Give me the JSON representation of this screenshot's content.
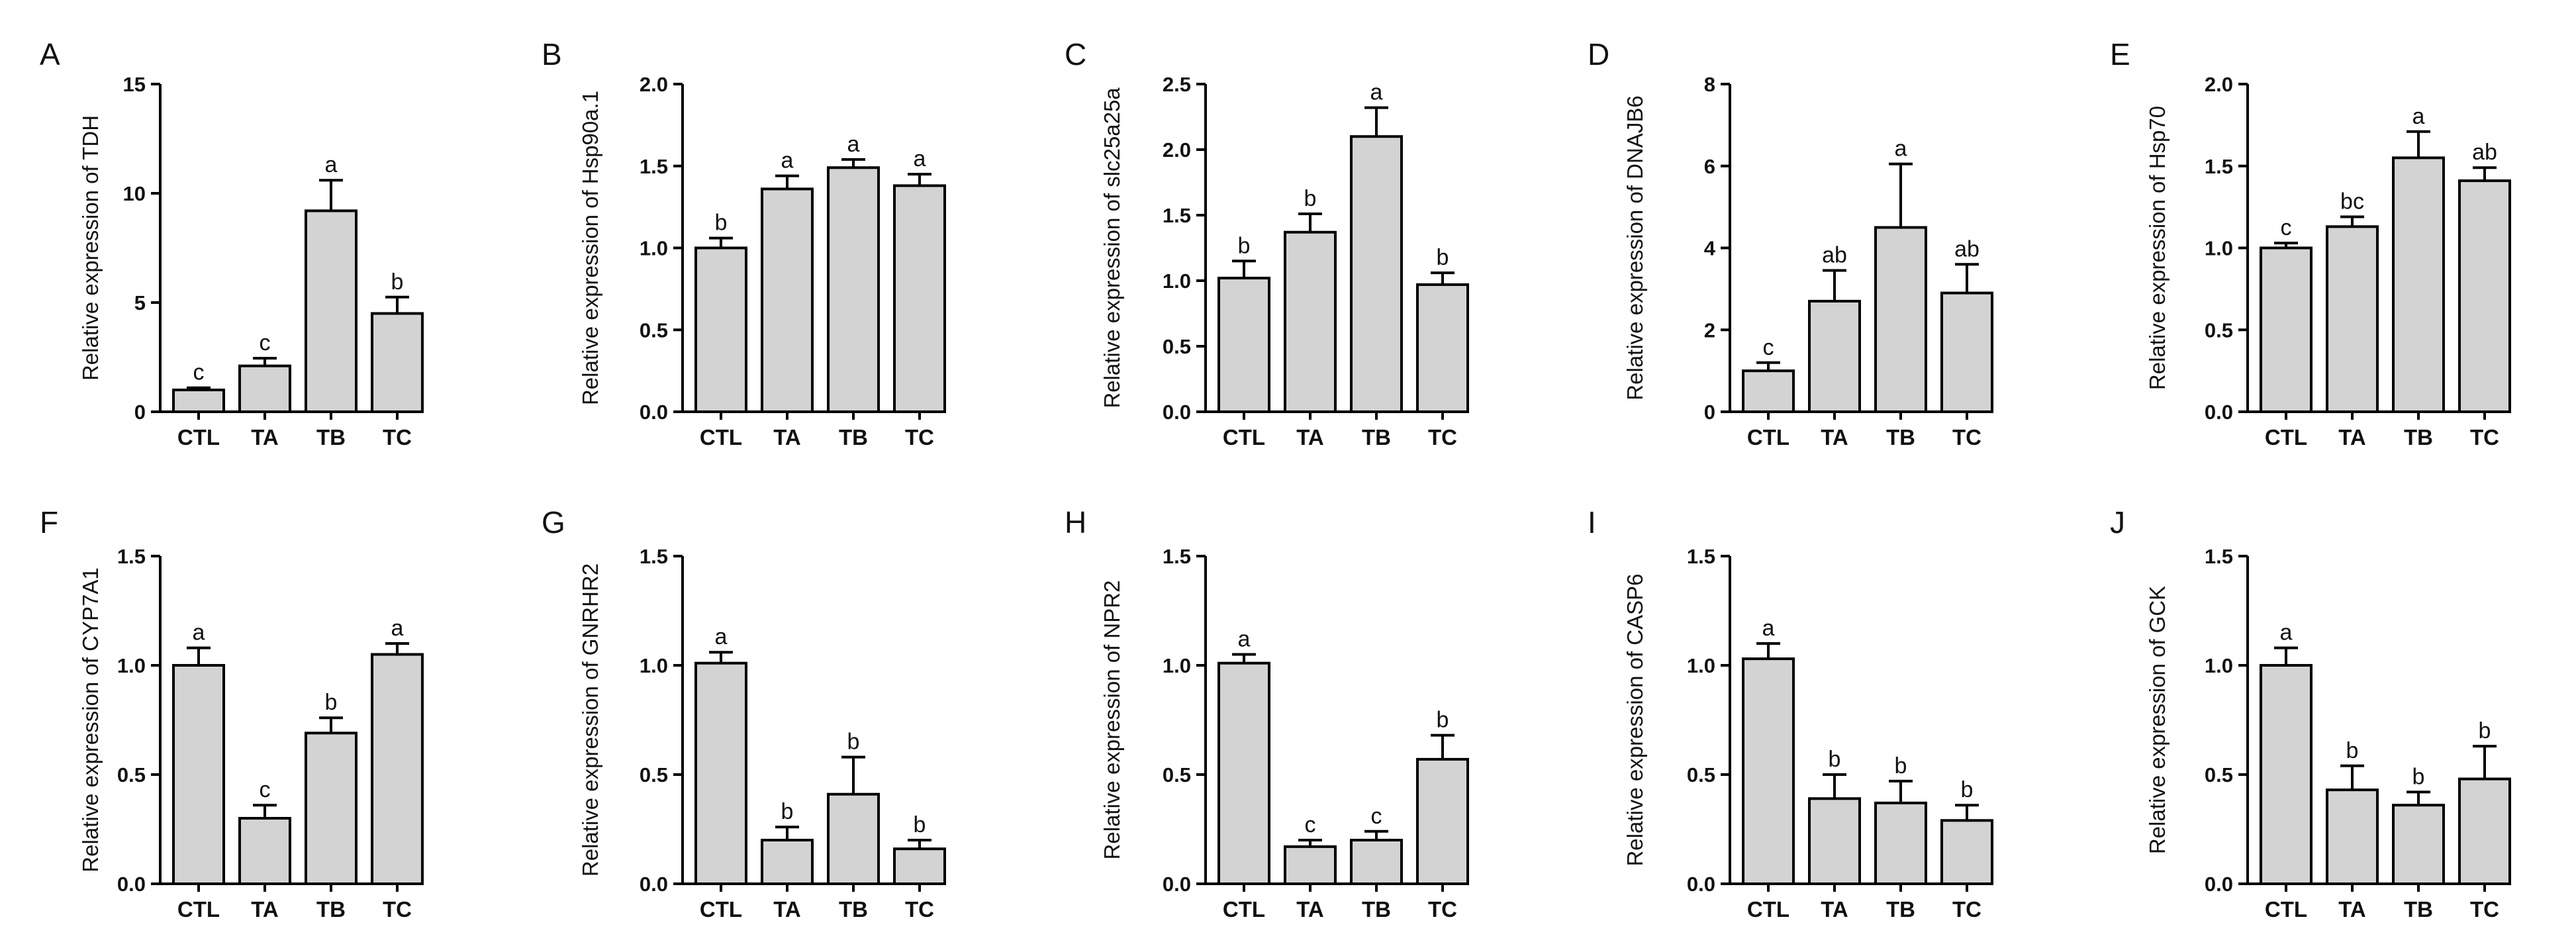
{
  "chart_data": [
    {
      "panel": "A",
      "type": "bar",
      "ylabel": "Relative expression of TDH",
      "categories": [
        "CTL",
        "TA",
        "TB",
        "TC"
      ],
      "values": [
        1.0,
        2.1,
        9.2,
        4.5
      ],
      "errors": [
        0.1,
        0.35,
        1.4,
        0.75
      ],
      "letters": [
        "c",
        "c",
        "a",
        "b"
      ],
      "ylim": [
        0,
        15
      ],
      "yticks": [
        0,
        5,
        10,
        15
      ],
      "ytick_labels": [
        "0",
        "5",
        "10",
        "15"
      ]
    },
    {
      "panel": "B",
      "type": "bar",
      "ylabel": "Relative expression of Hsp90a.1",
      "categories": [
        "CTL",
        "TA",
        "TB",
        "TC"
      ],
      "values": [
        1.0,
        1.36,
        1.49,
        1.38
      ],
      "errors": [
        0.06,
        0.08,
        0.05,
        0.07
      ],
      "letters": [
        "b",
        "a",
        "a",
        "a"
      ],
      "ylim": [
        0,
        2
      ],
      "yticks": [
        0,
        0.5,
        1,
        1.5,
        2
      ],
      "ytick_labels": [
        "0.0",
        "0.5",
        "1.0",
        "1.5",
        "2.0"
      ]
    },
    {
      "panel": "C",
      "type": "bar",
      "ylabel": "Relative expression of slc25a25a",
      "categories": [
        "CTL",
        "TA",
        "TB",
        "TC"
      ],
      "values": [
        1.02,
        1.37,
        2.1,
        0.97
      ],
      "errors": [
        0.13,
        0.14,
        0.22,
        0.09
      ],
      "letters": [
        "b",
        "b",
        "a",
        "b"
      ],
      "ylim": [
        0,
        2.5
      ],
      "yticks": [
        0,
        0.5,
        1,
        1.5,
        2,
        2.5
      ],
      "ytick_labels": [
        "0.0",
        "0.5",
        "1.0",
        "1.5",
        "2.0",
        "2.5"
      ]
    },
    {
      "panel": "D",
      "type": "bar",
      "ylabel": "Relative expression of DNAJB6",
      "categories": [
        "CTL",
        "TA",
        "TB",
        "TC"
      ],
      "values": [
        1.0,
        2.7,
        4.5,
        2.9
      ],
      "errors": [
        0.2,
        0.75,
        1.55,
        0.7
      ],
      "letters": [
        "c",
        "ab",
        "a",
        "ab"
      ],
      "ylim": [
        0,
        8
      ],
      "yticks": [
        0,
        2,
        4,
        6,
        8
      ],
      "ytick_labels": [
        "0",
        "2",
        "4",
        "6",
        "8"
      ]
    },
    {
      "panel": "E",
      "type": "bar",
      "ylabel": "Relative expression of Hsp70",
      "categories": [
        "CTL",
        "TA",
        "TB",
        "TC"
      ],
      "values": [
        1.0,
        1.13,
        1.55,
        1.41
      ],
      "errors": [
        0.03,
        0.06,
        0.16,
        0.08
      ],
      "letters": [
        "c",
        "bc",
        "a",
        "ab"
      ],
      "ylim": [
        0,
        2
      ],
      "yticks": [
        0,
        0.5,
        1,
        1.5,
        2
      ],
      "ytick_labels": [
        "0.0",
        "0.5",
        "1.0",
        "1.5",
        "2.0"
      ]
    },
    {
      "panel": "F",
      "type": "bar",
      "ylabel": "Relative expression of CYP7A1",
      "categories": [
        "CTL",
        "TA",
        "TB",
        "TC"
      ],
      "values": [
        1.0,
        0.3,
        0.69,
        1.05
      ],
      "errors": [
        0.08,
        0.06,
        0.07,
        0.05
      ],
      "letters": [
        "a",
        "c",
        "b",
        "a"
      ],
      "ylim": [
        0,
        1.5
      ],
      "yticks": [
        0,
        0.5,
        1,
        1.5
      ],
      "ytick_labels": [
        "0.0",
        "0.5",
        "1.0",
        "1.5"
      ]
    },
    {
      "panel": "G",
      "type": "bar",
      "ylabel": "Relative expression of GNRHR2",
      "categories": [
        "CTL",
        "TA",
        "TB",
        "TC"
      ],
      "values": [
        1.01,
        0.2,
        0.41,
        0.16
      ],
      "errors": [
        0.05,
        0.06,
        0.17,
        0.04
      ],
      "letters": [
        "a",
        "b",
        "b",
        "b"
      ],
      "ylim": [
        0,
        1.5
      ],
      "yticks": [
        0,
        0.5,
        1,
        1.5
      ],
      "ytick_labels": [
        "0.0",
        "0.5",
        "1.0",
        "1.5"
      ]
    },
    {
      "panel": "H",
      "type": "bar",
      "ylabel": "Relative expression of NPR2",
      "categories": [
        "CTL",
        "TA",
        "TB",
        "TC"
      ],
      "values": [
        1.01,
        0.17,
        0.2,
        0.57
      ],
      "errors": [
        0.04,
        0.03,
        0.04,
        0.11
      ],
      "letters": [
        "a",
        "c",
        "c",
        "b"
      ],
      "ylim": [
        0,
        1.5
      ],
      "yticks": [
        0,
        0.5,
        1,
        1.5
      ],
      "ytick_labels": [
        "0.0",
        "0.5",
        "1.0",
        "1.5"
      ]
    },
    {
      "panel": "I",
      "type": "bar",
      "ylabel": "Relative expression of CASP6",
      "categories": [
        "CTL",
        "TA",
        "TB",
        "TC"
      ],
      "values": [
        1.03,
        0.39,
        0.37,
        0.29
      ],
      "errors": [
        0.07,
        0.11,
        0.1,
        0.07
      ],
      "letters": [
        "a",
        "b",
        "b",
        "b"
      ],
      "ylim": [
        0,
        1.5
      ],
      "yticks": [
        0,
        0.5,
        1,
        1.5
      ],
      "ytick_labels": [
        "0.0",
        "0.5",
        "1.0",
        "1.5"
      ]
    },
    {
      "panel": "J",
      "type": "bar",
      "ylabel": "Relative expression of GCK",
      "categories": [
        "CTL",
        "TA",
        "TB",
        "TC"
      ],
      "values": [
        1.0,
        0.43,
        0.36,
        0.48
      ],
      "errors": [
        0.08,
        0.11,
        0.06,
        0.15
      ],
      "letters": [
        "a",
        "b",
        "b",
        "b"
      ],
      "ylim": [
        0,
        1.5
      ],
      "yticks": [
        0,
        0.5,
        1,
        1.5
      ],
      "ytick_labels": [
        "0.0",
        "0.5",
        "1.0",
        "1.5"
      ]
    }
  ]
}
